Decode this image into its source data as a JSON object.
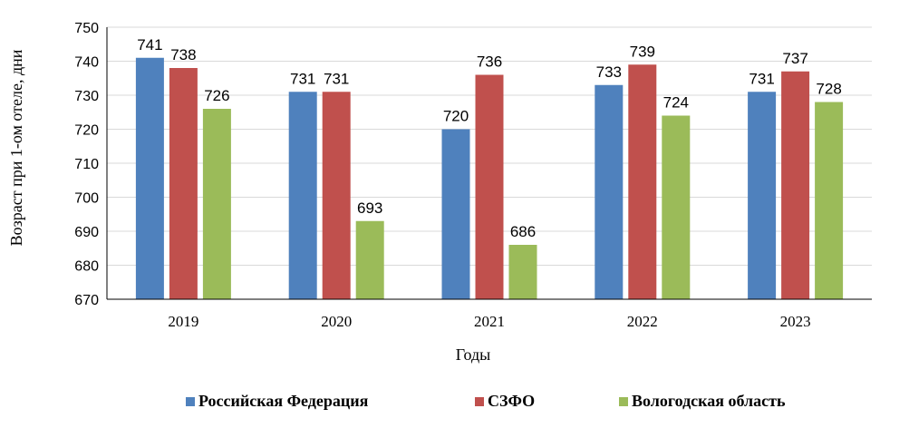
{
  "chart_data": {
    "type": "bar",
    "categories": [
      "2019",
      "2020",
      "2021",
      "2022",
      "2023"
    ],
    "series": [
      {
        "name": "Российская Федерация",
        "color": "#4f81bd",
        "values": [
          741,
          731,
          720,
          733,
          731
        ]
      },
      {
        "name": "СЗФО",
        "color": "#c0504d",
        "values": [
          738,
          731,
          736,
          739,
          737
        ]
      },
      {
        "name": "Вологодская область",
        "color": "#9bbb59",
        "values": [
          726,
          693,
          686,
          724,
          728
        ]
      }
    ],
    "xlabel": "Годы",
    "ylabel": "Возраст при 1-ом отеле, дни",
    "ylim": [
      670,
      750
    ],
    "yticks": [
      670,
      680,
      690,
      700,
      710,
      720,
      730,
      740,
      750
    ],
    "grid": true,
    "legend_position": "bottom"
  }
}
